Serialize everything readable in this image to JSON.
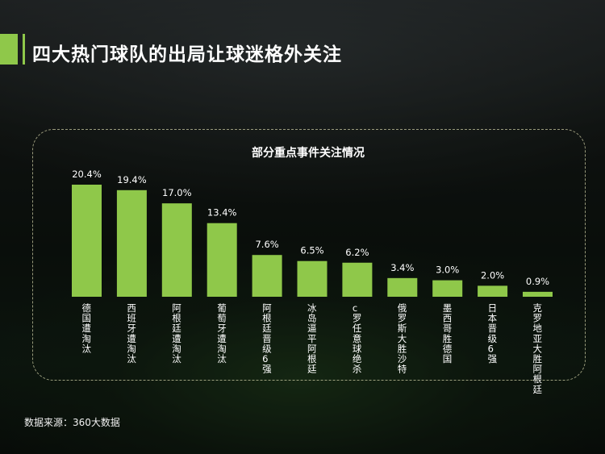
{
  "page": {
    "title": "四大热门球队的出局让球迷格外关注",
    "source_note": "数据来源：360大数据",
    "accent_color": "#8fc84a",
    "text_color": "#ffffff"
  },
  "chart_data": {
    "type": "bar",
    "title": "部分重点事件关注情况",
    "categories": [
      "德国遭淘汰",
      "西班牙遭淘汰",
      "阿根廷遭淘汰",
      "葡萄牙遭淘汰",
      "阿根廷晋级6强",
      "冰岛逼平阿根廷",
      "c罗任意球绝杀",
      "俄罗斯大胜沙特",
      "墨西哥胜德国",
      "日本晋级6强",
      "克罗地亚大胜阿根廷"
    ],
    "values": [
      20.4,
      19.4,
      17.0,
      13.4,
      7.6,
      6.5,
      6.2,
      3.4,
      3.0,
      2.0,
      0.9
    ],
    "value_labels": [
      "20.4%",
      "19.4%",
      "17.0%",
      "13.4%",
      "7.6%",
      "6.5%",
      "6.2%",
      "3.4%",
      "3.0%",
      "2.0%",
      "0.9%"
    ],
    "ylim": [
      0,
      20.4
    ],
    "grid": false,
    "legend": "none",
    "bar_color": "#8fc84a"
  }
}
